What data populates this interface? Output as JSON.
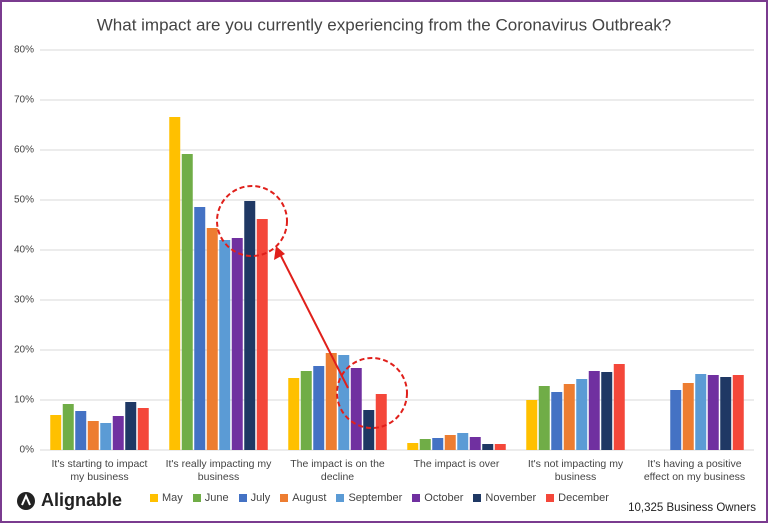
{
  "chart_data": {
    "type": "bar",
    "title": "What impact are you currently experiencing from the Coronavirus Outbreak?",
    "categories": [
      "It's starting to impact my business",
      "It's really impacting my business",
      "The impact is on the decline",
      "The impact is over",
      "It's not impacting my business",
      "It's having a positive effect on my business"
    ],
    "series": [
      {
        "name": "May",
        "color": "#ffc000",
        "values": [
          7.0,
          66.6,
          14.4,
          1.4,
          10.0,
          null
        ]
      },
      {
        "name": "June",
        "color": "#70ad47",
        "values": [
          9.2,
          59.2,
          15.8,
          2.2,
          12.8,
          null
        ]
      },
      {
        "name": "July",
        "color": "#4472c4",
        "values": [
          7.8,
          48.6,
          16.8,
          2.4,
          11.6,
          12.0
        ]
      },
      {
        "name": "August",
        "color": "#ed7d31",
        "values": [
          5.8,
          44.4,
          19.4,
          3.0,
          13.2,
          13.4
        ]
      },
      {
        "name": "September",
        "color": "#5b9bd5",
        "values": [
          5.4,
          42.0,
          19.0,
          3.4,
          14.2,
          15.2
        ]
      },
      {
        "name": "October",
        "color": "#7030a0",
        "values": [
          6.8,
          42.4,
          16.4,
          2.6,
          15.8,
          15.0
        ]
      },
      {
        "name": "November",
        "color": "#1f3864",
        "values": [
          9.6,
          49.8,
          8.0,
          1.2,
          15.6,
          14.6
        ]
      },
      {
        "name": "December",
        "color": "#f4473a",
        "values": [
          8.4,
          46.2,
          11.2,
          1.2,
          17.2,
          15.0
        ]
      }
    ],
    "ylim": [
      0,
      80
    ],
    "yticks": [
      {
        "value": 0,
        "label": "0%"
      },
      {
        "value": 10,
        "label": "10%"
      },
      {
        "value": 20,
        "label": "20%"
      },
      {
        "value": 30,
        "label": "30%"
      },
      {
        "value": 40,
        "label": "40%"
      },
      {
        "value": 50,
        "label": "50%"
      },
      {
        "value": 60,
        "label": "60%"
      },
      {
        "value": 70,
        "label": "70%"
      },
      {
        "value": 80,
        "label": "80%"
      }
    ],
    "grid": true,
    "logo": "Alignable",
    "footer_note": "10,325 Business Owners"
  }
}
